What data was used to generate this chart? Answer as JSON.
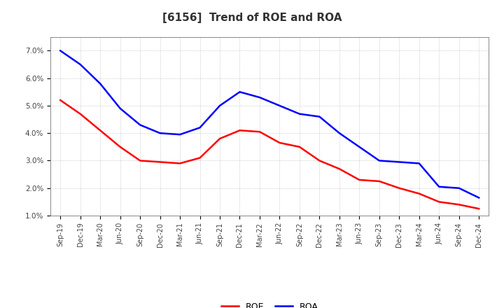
{
  "title": "[6156]  Trend of ROE and ROA",
  "x_labels": [
    "Sep-19",
    "Dec-19",
    "Mar-20",
    "Jun-20",
    "Sep-20",
    "Dec-20",
    "Mar-21",
    "Jun-21",
    "Sep-21",
    "Dec-21",
    "Mar-22",
    "Jun-22",
    "Sep-22",
    "Dec-22",
    "Mar-23",
    "Jun-23",
    "Sep-23",
    "Dec-23",
    "Mar-24",
    "Jun-24",
    "Sep-24",
    "Dec-24"
  ],
  "roe": [
    5.2,
    4.7,
    4.1,
    3.5,
    3.0,
    2.95,
    2.9,
    3.1,
    3.8,
    4.1,
    4.05,
    3.65,
    3.5,
    3.0,
    2.7,
    2.3,
    2.25,
    2.0,
    1.8,
    1.5,
    1.4,
    1.25
  ],
  "roa": [
    7.0,
    6.5,
    5.8,
    4.9,
    4.3,
    4.0,
    3.95,
    4.2,
    5.0,
    5.5,
    5.3,
    5.0,
    4.7,
    4.6,
    4.0,
    3.5,
    3.0,
    2.95,
    2.9,
    2.05,
    2.0,
    1.65
  ],
  "roe_color": "#ff0000",
  "roa_color": "#0000ff",
  "ylim": [
    1.0,
    7.5
  ],
  "yticks": [
    1.0,
    2.0,
    3.0,
    4.0,
    5.0,
    6.0,
    7.0
  ],
  "ytick_labels": [
    "1.0%",
    "2.0%",
    "3.0%",
    "4.0%",
    "5.0%",
    "6.0%",
    "7.0%"
  ],
  "line_width": 1.8,
  "bg_color": "#ffffff",
  "plot_bg_color": "#ffffff",
  "grid_color": "#bbbbbb",
  "legend_labels": [
    "ROE",
    "ROA"
  ],
  "title_fontsize": 11,
  "tick_fontsize": 7,
  "legend_fontsize": 9
}
